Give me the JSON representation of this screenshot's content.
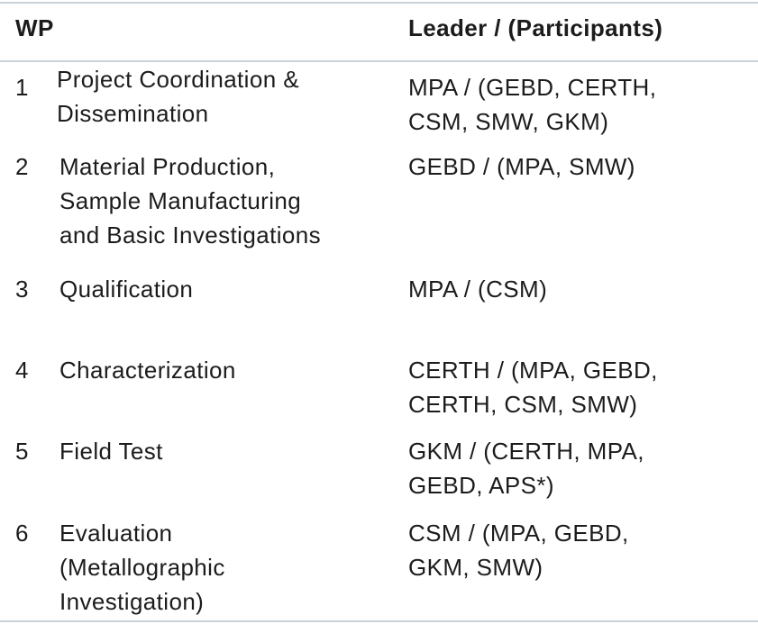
{
  "table": {
    "header": [
      "WP",
      "Leader / (Participants)"
    ],
    "rows": [
      {
        "wp": "1",
        "title": [
          "Project Coordination &",
          "Dissemination"
        ],
        "leader": [
          "MPA / (GEBD, CERTH,",
          "CSM, SMW, GKM)"
        ]
      },
      {
        "wp": "2",
        "title": [
          "Material Production,",
          "Sample Manufacturing",
          "and Basic Investigations"
        ],
        "leader": [
          "GEBD / (MPA, SMW)"
        ]
      },
      {
        "wp": "3",
        "title": [
          "Qualification"
        ],
        "leader": [
          "MPA / (CSM)"
        ]
      },
      {
        "wp": "4",
        "title": [
          "Characterization"
        ],
        "leader": [
          "CERTH / (MPA, GEBD,",
          "CERTH, CSM, SMW)"
        ]
      },
      {
        "wp": "5",
        "title": [
          "Field Test"
        ],
        "leader": [
          "GKM / (CERTH, MPA,",
          "GEBD, APS*)"
        ]
      },
      {
        "wp": "6",
        "title": [
          "Evaluation",
          "(Metallographic",
          "Investigation)"
        ],
        "leader": [
          "CSM / (MPA, GEBD,",
          "GKM, SMW)"
        ]
      }
    ]
  }
}
